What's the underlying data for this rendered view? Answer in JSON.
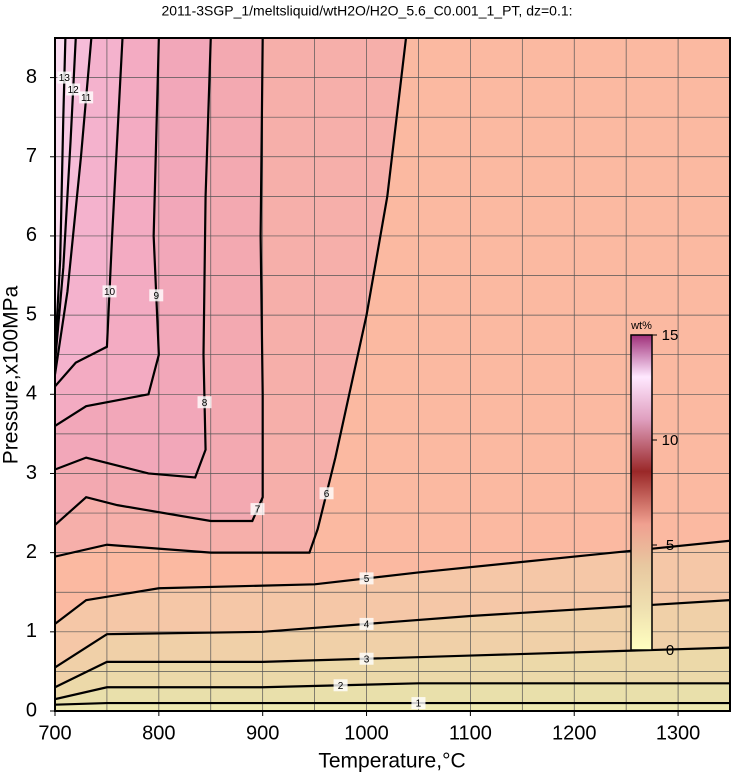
{
  "chart_data": {
    "type": "contour",
    "title": "2011-3SGP_1/meltsliquid/wtH2O/H2O_5.6_C0.001_1_PT, dz=0.1:",
    "xlabel": "Temperature,°C",
    "ylabel": "Pressure,x100MPa",
    "xlim": [
      700,
      1350
    ],
    "ylim": [
      0,
      8.5
    ],
    "xticks": [
      700,
      800,
      900,
      1000,
      1100,
      1200,
      1300
    ],
    "yticks": [
      0,
      1,
      2,
      3,
      4,
      5,
      6,
      7,
      8
    ],
    "xgrid": [
      750,
      800,
      850,
      900,
      950,
      1000,
      1050,
      1100,
      1150,
      1200,
      1250,
      1300
    ],
    "ygrid": [
      0.5,
      1,
      1.5,
      2,
      2.5,
      3,
      3.5,
      4,
      4.5,
      5,
      5.5,
      6,
      6.5,
      7,
      7.5,
      8
    ],
    "background": "#fbb9a1",
    "contours": [
      {
        "level": 6,
        "fill_side": "left",
        "color": "#f6afaa",
        "x": [
          700,
          750,
          850,
          945,
          953,
          970,
          1000,
          1020,
          1038
        ],
        "y": [
          1.95,
          2.1,
          2.0,
          2.0,
          2.3,
          3.2,
          5,
          6.5,
          8.5
        ]
      },
      {
        "level": 7,
        "fill_side": "left",
        "color": "#f3a9b1",
        "x": [
          700,
          730,
          760,
          850,
          890,
          900,
          900,
          898,
          900
        ],
        "y": [
          2.35,
          2.7,
          2.6,
          2.4,
          2.4,
          2.7,
          4,
          6,
          8.5
        ]
      },
      {
        "level": 8,
        "fill_side": "left",
        "color": "#f2a7b9",
        "x": [
          700,
          730,
          790,
          835,
          845,
          843,
          845,
          850
        ],
        "y": [
          3.05,
          3.2,
          3.0,
          2.95,
          3.3,
          4.5,
          6.5,
          8.5
        ]
      },
      {
        "level": 9,
        "fill_side": "left",
        "color": "#f3abc2",
        "x": [
          700,
          730,
          790,
          800,
          795,
          800
        ],
        "y": [
          3.6,
          3.85,
          4.0,
          4.5,
          6,
          8.5
        ]
      },
      {
        "level": 10,
        "fill_side": "left",
        "color": "#f4b2cd",
        "x": [
          700,
          720,
          750,
          755,
          765
        ],
        "y": [
          4.1,
          4.4,
          4.6,
          6,
          8.5
        ]
      },
      {
        "level": 11,
        "fill_side": "left",
        "color": "#f6bdd9",
        "x": [
          700,
          712,
          725,
          735
        ],
        "y": [
          4.25,
          5.3,
          7,
          8.5
        ]
      },
      {
        "level": 12,
        "fill_side": "left",
        "color": "#f8cae5",
        "x": [
          700,
          708,
          715,
          720
        ],
        "y": [
          4.4,
          5.6,
          7.2,
          8.5
        ]
      },
      {
        "level": 13,
        "fill_side": "left",
        "color": "#fadcf0",
        "x": [
          700,
          705,
          708,
          710
        ],
        "y": [
          4.5,
          5.7,
          7.5,
          8.5
        ]
      },
      {
        "level": 5,
        "fill_side": "below",
        "color": "#f5c7a7",
        "x": [
          700,
          730,
          800,
          950,
          1050,
          1350
        ],
        "y": [
          1.1,
          1.4,
          1.55,
          1.6,
          1.75,
          2.15
        ]
      },
      {
        "level": 4,
        "fill_side": "below",
        "color": "#f0d0a8",
        "x": [
          700,
          750,
          900,
          1100,
          1350
        ],
        "y": [
          0.55,
          0.97,
          1.0,
          1.2,
          1.4
        ]
      },
      {
        "level": 3,
        "fill_side": "below",
        "color": "#ecd9a9",
        "x": [
          700,
          750,
          900,
          1100,
          1350
        ],
        "y": [
          0.3,
          0.62,
          0.62,
          0.7,
          0.8
        ]
      },
      {
        "level": 2,
        "fill_side": "below",
        "color": "#e9e0ab",
        "x": [
          700,
          750,
          900,
          1050,
          1350
        ],
        "y": [
          0.15,
          0.3,
          0.3,
          0.35,
          0.35
        ]
      },
      {
        "level": 1,
        "fill_side": "below",
        "color": "#eee9b1",
        "x": [
          700,
          750,
          1350
        ],
        "y": [
          0.08,
          0.1,
          0.1
        ]
      }
    ],
    "colorbar": {
      "label": "wt%",
      "lim": [
        0,
        15
      ],
      "ticks": [
        0,
        5,
        10,
        15
      ],
      "stops": [
        {
          "value": 0,
          "color": "#ffffc0"
        },
        {
          "value": 2,
          "color": "#efe0b0"
        },
        {
          "value": 4,
          "color": "#e8c8a0"
        },
        {
          "value": 6,
          "color": "#f0a090"
        },
        {
          "value": 8.5,
          "color": "#9a2828"
        },
        {
          "value": 11,
          "color": "#e0a0c0"
        },
        {
          "value": 13,
          "color": "#ffe8ff"
        },
        {
          "value": 15,
          "color": "#a0307a"
        }
      ]
    }
  }
}
